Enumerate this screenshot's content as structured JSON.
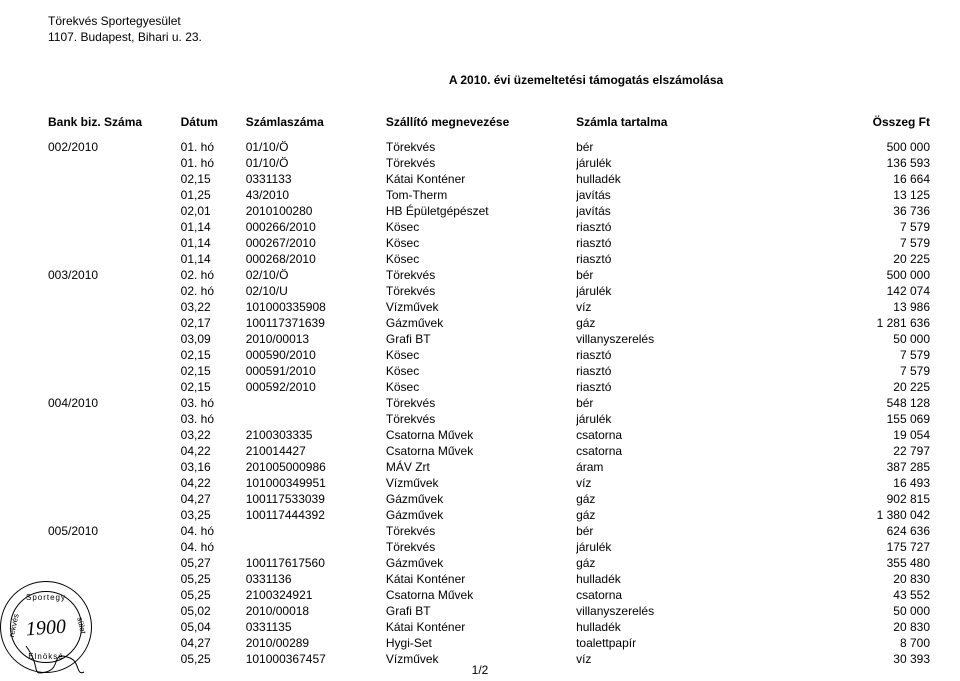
{
  "org": {
    "line1": "Törekvés Sportegyesület",
    "line2": "1107. Budapest, Bihari u. 23."
  },
  "title": "A 2010. évi üzemeltetési támogatás elszámolása",
  "headers": {
    "bank": "Bank biz. Száma",
    "datum": "Dátum",
    "szamla": "Számlaszáma",
    "szallito": "Szállító megnevezése",
    "tart": "Számla tartalma",
    "ossz": "Összeg Ft"
  },
  "pagenum": "1/2",
  "stamp": {
    "top": "Sportegy",
    "bot": "Elnöksé",
    "left": "rekvés",
    "right": "sület",
    "year": "1900"
  },
  "cols": {
    "bank_w": 106,
    "datum_w": 52,
    "szamla_w": 112,
    "szallito_w": 152,
    "tart_w": 186,
    "ossz_w": 100
  },
  "rows": [
    {
      "bank": "002/2010",
      "datum": "01. hó",
      "szamla": "01/10/Ö",
      "szallito": "Törekvés",
      "tart": "bér",
      "ossz": "500 000"
    },
    {
      "bank": "",
      "datum": "01. hó",
      "szamla": "01/10/Ö",
      "szallito": "Törekvés",
      "tart": "járulék",
      "ossz": "136 593"
    },
    {
      "bank": "",
      "datum": "02,15",
      "szamla": "0331133",
      "szallito": "Kátai Konténer",
      "tart": "hulladék",
      "ossz": "16 664"
    },
    {
      "bank": "",
      "datum": "01,25",
      "szamla": "43/2010",
      "szallito": "Tom-Therm",
      "tart": "javítás",
      "ossz": "13 125"
    },
    {
      "bank": "",
      "datum": "02,01",
      "szamla": "2010100280",
      "szallito": "HB Épületgépészet",
      "tart": "javítás",
      "ossz": "36 736"
    },
    {
      "bank": "",
      "datum": "01,14",
      "szamla": "000266/2010",
      "szallito": "Kösec",
      "tart": "riasztó",
      "ossz": "7 579"
    },
    {
      "bank": "",
      "datum": "01,14",
      "szamla": "000267/2010",
      "szallito": "Kösec",
      "tart": "riasztó",
      "ossz": "7 579"
    },
    {
      "bank": "",
      "datum": "01,14",
      "szamla": "000268/2010",
      "szallito": "Kösec",
      "tart": "riasztó",
      "ossz": "20 225"
    },
    {
      "bank": "003/2010",
      "datum": "02. hó",
      "szamla": "02/10/Ö",
      "szallito": "Törekvés",
      "tart": "bér",
      "ossz": "500 000"
    },
    {
      "bank": "",
      "datum": "02. hó",
      "szamla": "02/10/U",
      "szallito": "Törekvés",
      "tart": "járulék",
      "ossz": "142 074"
    },
    {
      "bank": "",
      "datum": "03,22",
      "szamla": "101000335908",
      "szallito": "Vízművek",
      "tart": "víz",
      "ossz": "13 986"
    },
    {
      "bank": "",
      "datum": "02,17",
      "szamla": "100117371639",
      "szallito": "Gázművek",
      "tart": "gáz",
      "ossz": "1 281 636"
    },
    {
      "bank": "",
      "datum": "03,09",
      "szamla": "2010/00013",
      "szallito": "Grafi BT",
      "tart": "villanyszerelés",
      "ossz": "50 000"
    },
    {
      "bank": "",
      "datum": "02,15",
      "szamla": "000590/2010",
      "szallito": "Kösec",
      "tart": "riasztó",
      "ossz": "7 579"
    },
    {
      "bank": "",
      "datum": "02,15",
      "szamla": "000591/2010",
      "szallito": "Kösec",
      "tart": "riasztó",
      "ossz": "7 579"
    },
    {
      "bank": "",
      "datum": "02,15",
      "szamla": "000592/2010",
      "szallito": "Kösec",
      "tart": "riasztó",
      "ossz": "20 225"
    },
    {
      "bank": "004/2010",
      "datum": "03. hó",
      "szamla": "",
      "szallito": "Törekvés",
      "tart": "bér",
      "ossz": "548 128"
    },
    {
      "bank": "",
      "datum": "03. hó",
      "szamla": "",
      "szallito": "Törekvés",
      "tart": "járulék",
      "ossz": "155 069"
    },
    {
      "bank": "",
      "datum": "03,22",
      "szamla": "2100303335",
      "szallito": "Csatorna Művek",
      "tart": "csatorna",
      "ossz": "19 054"
    },
    {
      "bank": "",
      "datum": "04,22",
      "szamla": "210014427",
      "szallito": "Csatorna Művek",
      "tart": "csatorna",
      "ossz": "22 797"
    },
    {
      "bank": "",
      "datum": "03,16",
      "szamla": "201005000986",
      "szallito": "MÁV Zrt",
      "tart": "áram",
      "ossz": "387 285"
    },
    {
      "bank": "",
      "datum": "04,22",
      "szamla": "101000349951",
      "szallito": "Vízművek",
      "tart": "víz",
      "ossz": "16 493"
    },
    {
      "bank": "",
      "datum": "04,27",
      "szamla": "100117533039",
      "szallito": "Gázművek",
      "tart": "gáz",
      "ossz": "902 815"
    },
    {
      "bank": "",
      "datum": "03,25",
      "szamla": "100117444392",
      "szallito": "Gázművek",
      "tart": "gáz",
      "ossz": "1 380 042"
    },
    {
      "bank": "005/2010",
      "datum": "04. hó",
      "szamla": "",
      "szallito": "Törekvés",
      "tart": "bér",
      "ossz": "624 636"
    },
    {
      "bank": "",
      "datum": "04. hó",
      "szamla": "",
      "szallito": "Törekvés",
      "tart": "járulék",
      "ossz": "175 727"
    },
    {
      "bank": "",
      "datum": "05,27",
      "szamla": "100117617560",
      "szallito": "Gázművek",
      "tart": "gáz",
      "ossz": "355 480"
    },
    {
      "bank": "",
      "datum": "05,25",
      "szamla": "0331136",
      "szallito": "Kátai Konténer",
      "tart": "hulladék",
      "ossz": "20 830"
    },
    {
      "bank": "",
      "datum": "05,25",
      "szamla": "2100324921",
      "szallito": "Csatorna Művek",
      "tart": "csatorna",
      "ossz": "43 552"
    },
    {
      "bank": "",
      "datum": "05,02",
      "szamla": "2010/00018",
      "szallito": "Grafi BT",
      "tart": "villanyszerelés",
      "ossz": "50 000"
    },
    {
      "bank": "",
      "datum": "05,04",
      "szamla": "0331135",
      "szallito": "Kátai Konténer",
      "tart": "hulladék",
      "ossz": "20 830"
    },
    {
      "bank": "",
      "datum": "04,27",
      "szamla": "2010/00289",
      "szallito": "Hygi-Set",
      "tart": "toalettpapír",
      "ossz": "8 700"
    },
    {
      "bank": "",
      "datum": "05,25",
      "szamla": "101000367457",
      "szallito": "Vízművek",
      "tart": "víz",
      "ossz": "30 393"
    }
  ]
}
